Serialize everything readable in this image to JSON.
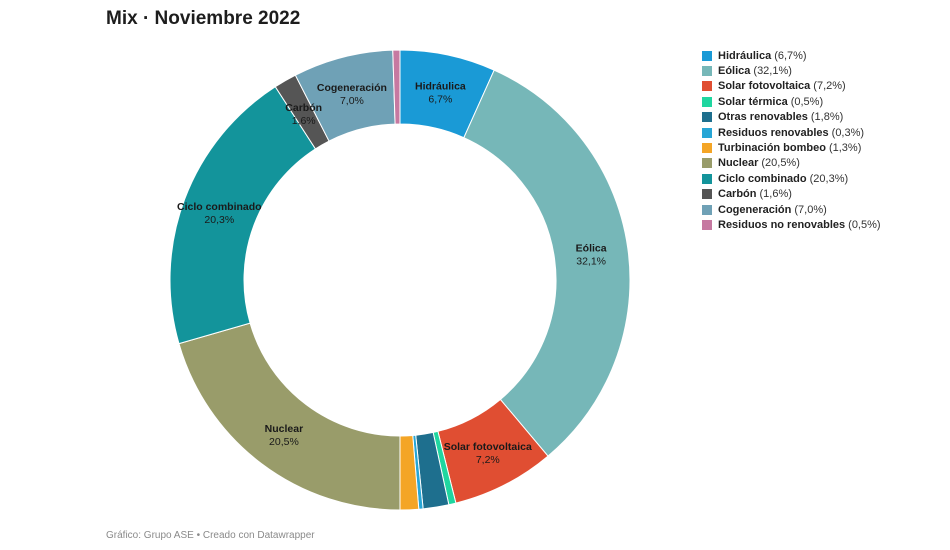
{
  "title": "Mix · Noviembre 2022",
  "footer": "Gráfico: Grupo ASE • Creado con Datawrapper",
  "chart_data": {
    "type": "pie",
    "title": "Mix · Noviembre 2022",
    "slices": [
      {
        "name": "Hidráulica",
        "value": 6.7,
        "value_label": "6,7%",
        "color": "#1a9ad6",
        "legend": "(6,7%)",
        "show_label": true
      },
      {
        "name": "Eólica",
        "value": 32.1,
        "value_label": "32,1%",
        "color": "#76b7b8",
        "legend": "(32,1%)",
        "show_label": true
      },
      {
        "name": "Solar fotovoltaica",
        "value": 7.2,
        "value_label": "7,2%",
        "color": "#e04e32",
        "legend": "(7,2%)",
        "show_label": true
      },
      {
        "name": "Solar térmica",
        "value": 0.5,
        "value_label": "0,5%",
        "color": "#1fd6a0",
        "legend": "(0,5%)",
        "show_label": false
      },
      {
        "name": "Otras renovables",
        "value": 1.8,
        "value_label": "1,8%",
        "color": "#1e6f8e",
        "legend": "(1,8%)",
        "show_label": false
      },
      {
        "name": "Residuos renovables",
        "value": 0.3,
        "value_label": "0,3%",
        "color": "#27a6d6",
        "legend": "(0,3%)",
        "show_label": false
      },
      {
        "name": "Turbinación bombeo",
        "value": 1.3,
        "value_label": "1,3%",
        "color": "#f4a526",
        "legend": "(1,3%)",
        "show_label": false
      },
      {
        "name": "Nuclear",
        "value": 20.5,
        "value_label": "20,5%",
        "color": "#999c6a",
        "legend": "(20,5%)",
        "show_label": true
      },
      {
        "name": "Ciclo combinado",
        "value": 20.3,
        "value_label": "20,3%",
        "color": "#13949b",
        "legend": "(20,3%)",
        "show_label": true
      },
      {
        "name": "Carbón",
        "value": 1.6,
        "value_label": "1,6%",
        "color": "#555555",
        "legend": "(1,6%)",
        "show_label": true
      },
      {
        "name": "Cogeneración",
        "value": 7.0,
        "value_label": "7,0%",
        "color": "#6fa1b6",
        "legend": "(7,0%)",
        "show_label": true
      },
      {
        "name": "Residuos no renovables",
        "value": 0.5,
        "value_label": "0,5%",
        "color": "#c679a1",
        "legend": "(0,5%)",
        "show_label": false
      }
    ]
  }
}
